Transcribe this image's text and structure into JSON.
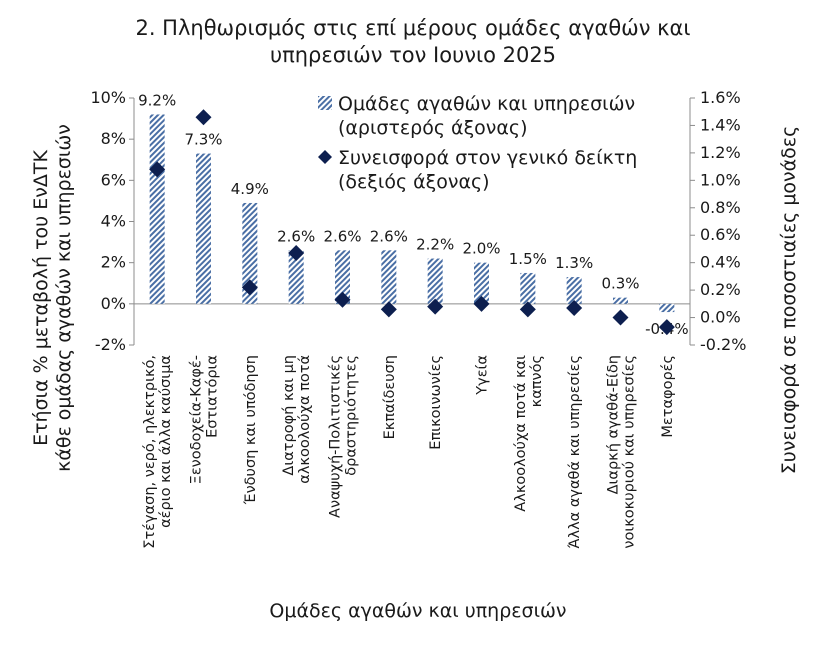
{
  "chart_data": {
    "type": "bar",
    "title": [
      "2. Πληθωρισμός στις επί μέρους ομάδες αγαθών και",
      "υπηρεσιών τον Ιουνιο 2025"
    ],
    "categories": [
      [
        "Στέγαση, νερό, ηλεκτρικό,",
        "αέριο και άλλα καύσιμα"
      ],
      [
        "Ξενοδοχεία-Καφέ-",
        "Εστιατόρια"
      ],
      [
        "Ένδυση και υπόδηση"
      ],
      [
        "Διατροφή και μη",
        "αλκοολούχα ποτά"
      ],
      [
        "Αναψυχή-Πολιτιστικές",
        "δραστηριότητες"
      ],
      [
        "Εκπαίδευση"
      ],
      [
        "Επικοινωνίες"
      ],
      [
        "Υγεία"
      ],
      [
        "Αλκοολούχα ποτά και",
        "καπνός"
      ],
      [
        "Άλλα αγαθά και υπηρεσίες"
      ],
      [
        "Διαρκή αγαθά-Είδη",
        "νοικοκυριού και υπηρεσίες"
      ],
      [
        "Μεταφορές"
      ]
    ],
    "series": [
      {
        "name": "Ομάδες αγαθών και υπηρεσιών (αριστερός άξονας)",
        "legend_lines": [
          "Ομάδες αγαθών και υπηρεσιών",
          "(αριστερός άξονας)"
        ],
        "kind": "bar",
        "axis": "left",
        "values": [
          9.2,
          7.3,
          4.9,
          2.6,
          2.6,
          2.6,
          2.2,
          2.0,
          1.5,
          1.3,
          0.3,
          -0.4
        ],
        "data_labels": [
          "9.2%",
          "7.3%",
          "4.9%",
          "2.6%",
          "2.6%",
          "2.6%",
          "2.2%",
          "2.0%",
          "1.5%",
          "1.3%",
          "0.3%",
          "-0.4%"
        ],
        "color": "#4a6fa5"
      },
      {
        "name": "Συνεισφορά στον γενικό δείκτη (δεξιός άξονας)",
        "legend_lines": [
          "Συνεισφορά στον γενικό δείκτη",
          "(δεξιός άξονας)"
        ],
        "kind": "scatter",
        "axis": "right",
        "values": [
          1.08,
          1.46,
          0.22,
          0.47,
          0.13,
          0.06,
          0.08,
          0.1,
          0.06,
          0.07,
          0.0,
          -0.07
        ],
        "color": "#0d1f4f"
      }
    ],
    "ylabel_left": [
      "Ετήσια % μεταβολή του ΕνΔΤΚ",
      "κάθε ομάδας αγαθών και υπηρεσιών"
    ],
    "ylabel_right": "Συνεισφορά σε ποσοστιαίες μονάδες",
    "xlabel": "Ομάδες αγαθών και υπηρεσιών",
    "ylim_left": [
      -2,
      10
    ],
    "yticks_left": [
      "-2%",
      "0%",
      "2%",
      "4%",
      "6%",
      "8%",
      "10%"
    ],
    "ylim_right": [
      -0.2,
      1.6
    ],
    "yticks_right": [
      "-0.2%",
      "0.0%",
      "0.2%",
      "0.4%",
      "0.6%",
      "0.8%",
      "1.0%",
      "1.2%",
      "1.4%",
      "1.6%"
    ],
    "grid": false,
    "legend_position": "top-right"
  }
}
